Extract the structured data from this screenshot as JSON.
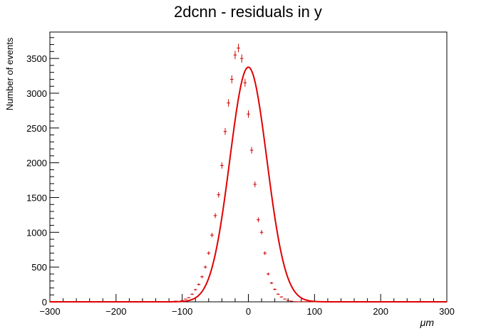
{
  "chart_data": {
    "type": "scatter",
    "title": "2dcnn - residuals in y",
    "xlabel": "μm",
    "ylabel": "Number of events",
    "xlim": [
      -300,
      300
    ],
    "ylim": [
      0,
      3880
    ],
    "x_ticks": [
      -300,
      -200,
      -100,
      0,
      100,
      200,
      300
    ],
    "y_ticks": [
      0,
      500,
      1000,
      1500,
      2000,
      2500,
      3000,
      3500
    ],
    "x_tick_labels": [
      "−300",
      "−200",
      "−100",
      "0",
      "100",
      "200",
      "300"
    ],
    "y_tick_labels": [
      "0",
      "500",
      "1000",
      "1500",
      "2000",
      "2500",
      "3000",
      "3500"
    ],
    "grid": false,
    "colors": {
      "points": "#cc0000",
      "fit": "#e00000",
      "axes": "#000000"
    },
    "series": [
      {
        "kind": "histogram-points",
        "x": [
          -290,
          -280,
          -270,
          -260,
          -250,
          -240,
          -230,
          -220,
          -210,
          -200,
          -190,
          -180,
          -170,
          -160,
          -150,
          -140,
          -130,
          -120,
          -110,
          -100,
          -95,
          -90,
          -85,
          -80,
          -75,
          -70,
          -65,
          -60,
          -55,
          -50,
          -45,
          -40,
          -35,
          -30,
          -25,
          -20,
          -15,
          -10,
          -5,
          0,
          5,
          10,
          15,
          20,
          25,
          30,
          35,
          40,
          45,
          50,
          55,
          60,
          65,
          70,
          75,
          80,
          85,
          90,
          95,
          100,
          105,
          110,
          115,
          120,
          130,
          140,
          150,
          160,
          170,
          180,
          190,
          200,
          210,
          220,
          230,
          240,
          250,
          260,
          270,
          280,
          290
        ],
        "y": [
          0,
          0,
          0,
          0,
          0,
          0,
          0,
          0,
          0,
          0,
          0,
          0,
          0,
          0,
          0,
          0,
          2,
          5,
          10,
          18,
          40,
          60,
          110,
          175,
          250,
          360,
          500,
          700,
          960,
          1240,
          1540,
          1960,
          2450,
          2860,
          3200,
          3550,
          3650,
          3500,
          3150,
          2700,
          2180,
          1690,
          1180,
          1000,
          700,
          400,
          270,
          180,
          110,
          70,
          40,
          20,
          10,
          3,
          2,
          2,
          2,
          2,
          2,
          0,
          0,
          0,
          0,
          0,
          0,
          0,
          0,
          0,
          0,
          0,
          0,
          0,
          0,
          0,
          0,
          0,
          0,
          0,
          0,
          0,
          0
        ],
        "xerr": 2.5
      },
      {
        "kind": "fit",
        "model": "gaussian",
        "amplitude": 3375,
        "mean": 0,
        "sigma": 28
      }
    ]
  }
}
